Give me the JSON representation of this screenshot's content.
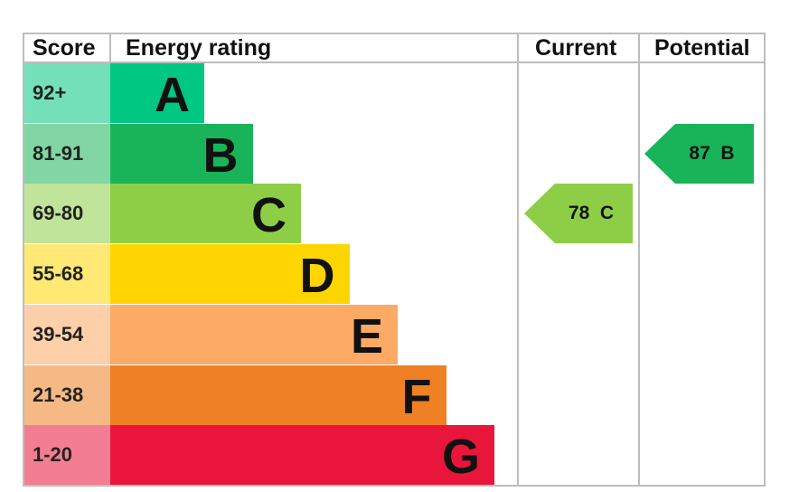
{
  "chart_data": {
    "type": "table",
    "headers": {
      "score": "Score",
      "rating": "Energy rating",
      "current": "Current",
      "potential": "Potential"
    },
    "bands": [
      {
        "score": "92+",
        "letter": "A",
        "color": "#00c781"
      },
      {
        "score": "81-91",
        "letter": "B",
        "color": "#19b459"
      },
      {
        "score": "69-80",
        "letter": "C",
        "color": "#8dce46"
      },
      {
        "score": "55-68",
        "letter": "D",
        "color": "#ffd500"
      },
      {
        "score": "39-54",
        "letter": "E",
        "color": "#fcaa65"
      },
      {
        "score": "21-38",
        "letter": "F",
        "color": "#ef8023"
      },
      {
        "score": "1-20",
        "letter": "G",
        "color": "#e9153b"
      }
    ],
    "current": {
      "value": 78,
      "letter": "C",
      "label": "78  C",
      "color": "#8dce46"
    },
    "potential": {
      "value": 87,
      "letter": "B",
      "label": "87  B",
      "color": "#19b459"
    }
  }
}
